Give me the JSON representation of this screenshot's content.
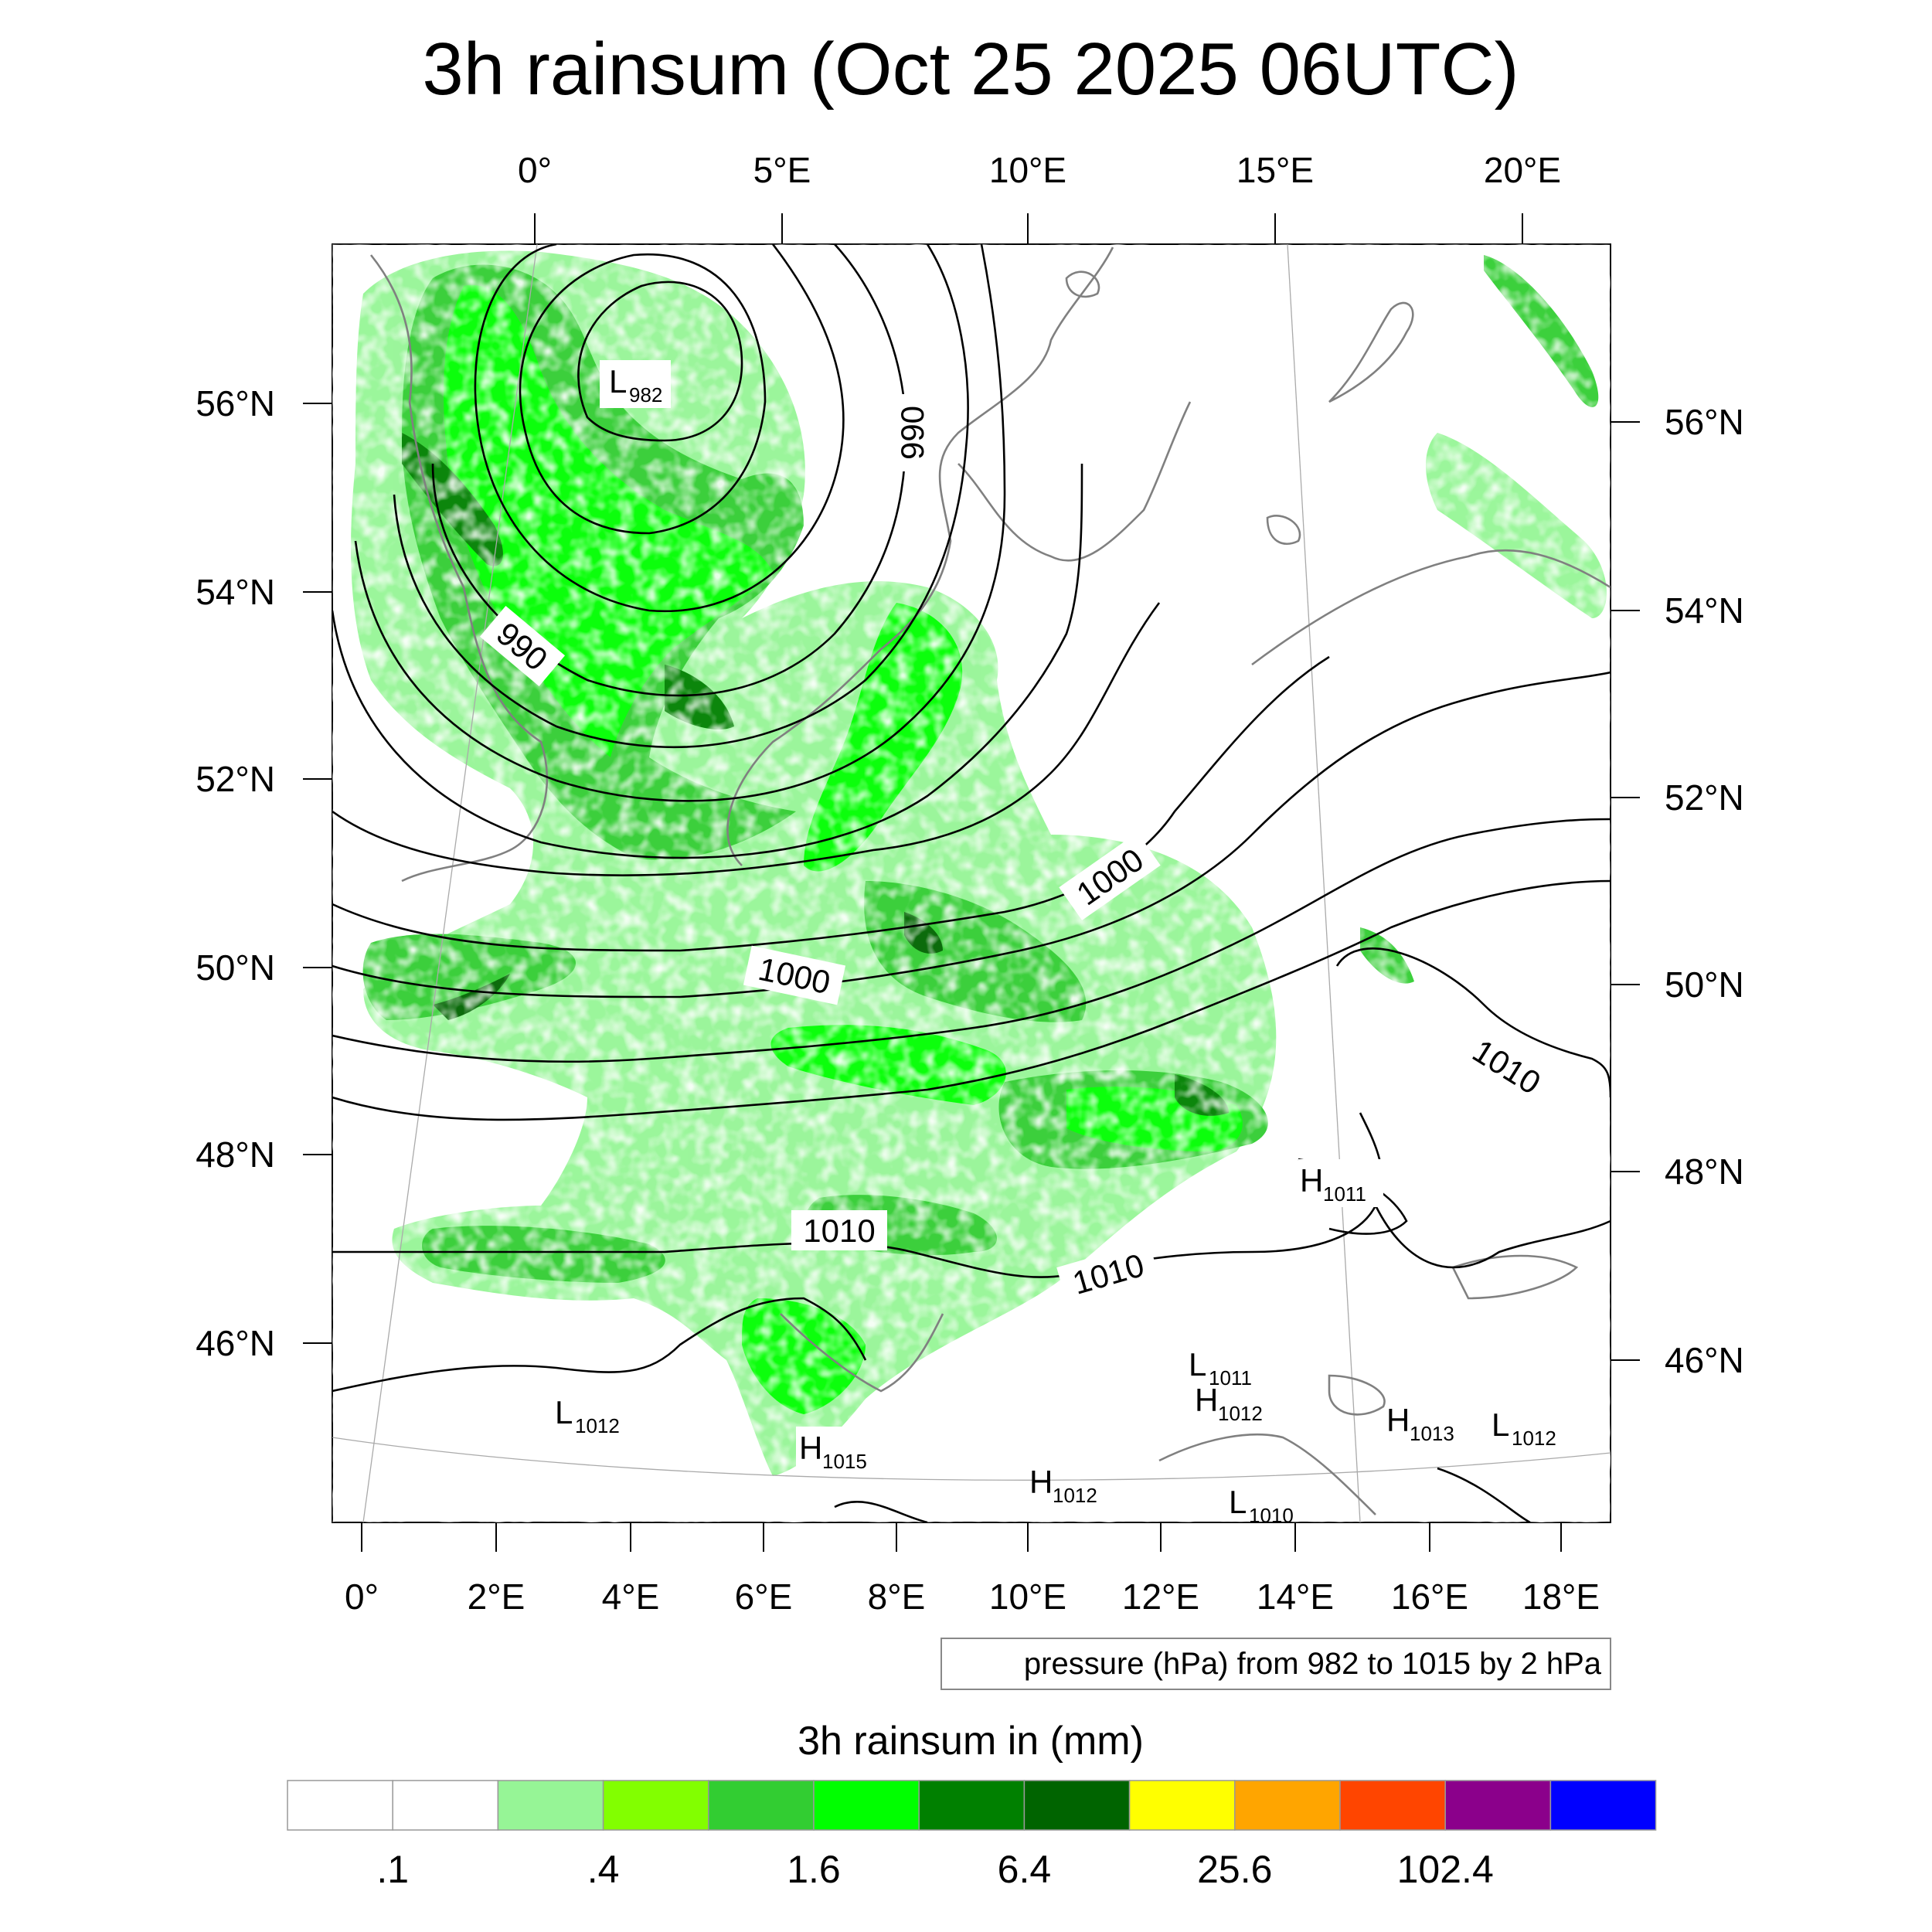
{
  "title": "3h rainsum (Oct 25 2025 06UTC)",
  "top_lon_labels": [
    "0°",
    "5°E",
    "10°E",
    "15°E",
    "20°E"
  ],
  "bottom_lon_labels": [
    "0°",
    "2°E",
    "4°E",
    "6°E",
    "8°E",
    "10°E",
    "12°E",
    "14°E",
    "16°E",
    "18°E"
  ],
  "left_lat_labels": [
    "56°N",
    "54°N",
    "52°N",
    "50°N",
    "48°N",
    "46°N"
  ],
  "right_lat_labels": [
    "56°N",
    "54°N",
    "52°N",
    "50°N",
    "48°N",
    "46°N"
  ],
  "contour_info": "pressure (hPa) from 982 to 1015 by 2 hPa",
  "isobar_labels": [
    {
      "text": "990"
    },
    {
      "text": "990"
    },
    {
      "text": "1000"
    },
    {
      "text": "1000"
    },
    {
      "text": "1010"
    },
    {
      "text": "1010"
    },
    {
      "text": "1010"
    }
  ],
  "pressure_centers": [
    {
      "type": "L",
      "value": "982"
    },
    {
      "type": "H",
      "value": "1011"
    },
    {
      "type": "L",
      "value": "1011"
    },
    {
      "type": "H",
      "value": "1012"
    },
    {
      "type": "L",
      "value": "1012"
    },
    {
      "type": "H",
      "value": "1013"
    },
    {
      "type": "L",
      "value": "1012"
    },
    {
      "type": "H",
      "value": "1015"
    },
    {
      "type": "H",
      "value": "1012"
    },
    {
      "type": "L",
      "value": "1010"
    }
  ],
  "colorbar": {
    "title": "3h rainsum in (mm)",
    "colors": [
      "#ffffff",
      "#ffffff",
      "#96f596",
      "#82ff00",
      "#32cd32",
      "#00ff00",
      "#008000",
      "#006400",
      "#ffff00",
      "#ffa500",
      "#ff4500",
      "#8b008b",
      "#0000ff"
    ],
    "labels": [
      ".1",
      ".4",
      "1.6",
      "6.4",
      "25.6",
      "102.4"
    ]
  }
}
